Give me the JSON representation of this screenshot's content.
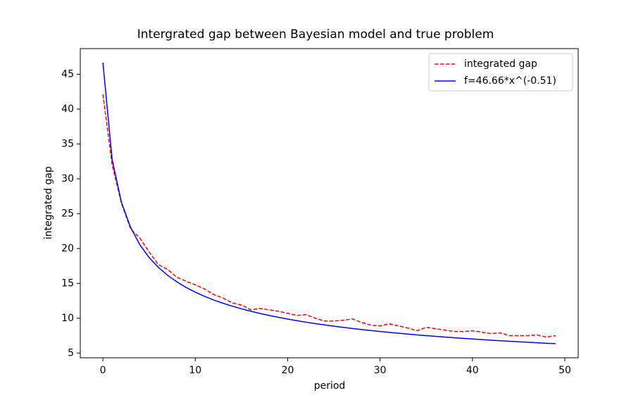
{
  "chart_data": {
    "type": "line",
    "title": "Intergrated gap between Bayesian model and true problem",
    "x_label": "period",
    "y_label": "integrated gap",
    "x": [
      0,
      1,
      2,
      3,
      4,
      5,
      6,
      7,
      8,
      9,
      10,
      11,
      12,
      13,
      14,
      15,
      16,
      17,
      18,
      19,
      20,
      21,
      22,
      23,
      24,
      25,
      26,
      27,
      28,
      29,
      30,
      31,
      32,
      33,
      34,
      35,
      36,
      37,
      38,
      39,
      40,
      41,
      42,
      43,
      44,
      45,
      46,
      47,
      48,
      49
    ],
    "series": [
      {
        "name": "integrated gap",
        "color": "#ff0000",
        "dash": true,
        "values": [
          42.1,
          32.0,
          26.5,
          22.8,
          21.5,
          19.5,
          17.7,
          17.0,
          15.9,
          15.3,
          14.8,
          14.2,
          13.4,
          12.9,
          12.2,
          11.9,
          11.2,
          11.4,
          11.2,
          11.0,
          10.7,
          10.4,
          10.5,
          10.0,
          9.6,
          9.6,
          9.7,
          9.9,
          9.4,
          9.0,
          8.9,
          9.2,
          8.9,
          8.6,
          8.2,
          8.7,
          8.5,
          8.3,
          8.1,
          8.1,
          8.2,
          8.0,
          7.8,
          7.9,
          7.5,
          7.5,
          7.5,
          7.6,
          7.3,
          7.5
        ]
      },
      {
        "name": "f=46.66*x^(-0.51)",
        "color": "#0000ff",
        "dash": false,
        "values": [
          46.66,
          32.77,
          26.65,
          23.01,
          20.54,
          18.71,
          17.3,
          16.16,
          15.22,
          14.42,
          13.74,
          13.14,
          12.61,
          12.15,
          11.73,
          11.35,
          11.0,
          10.69,
          10.4,
          10.13,
          9.88,
          9.65,
          9.43,
          9.22,
          9.04,
          8.86,
          8.69,
          8.53,
          8.38,
          8.23,
          8.1,
          7.97,
          7.84,
          7.73,
          7.61,
          7.5,
          7.4,
          7.3,
          7.2,
          7.11,
          7.02,
          6.93,
          6.85,
          6.77,
          6.7,
          6.62,
          6.55,
          6.48,
          6.41,
          6.35
        ]
      }
    ],
    "xlim": [
      -2.45,
      51.45
    ],
    "ylim": [
      4.32,
      48.68
    ],
    "xticks": [
      0,
      10,
      20,
      30,
      40,
      50
    ],
    "yticks": [
      5,
      10,
      15,
      20,
      25,
      30,
      35,
      40,
      45
    ],
    "legend": "upper right"
  }
}
